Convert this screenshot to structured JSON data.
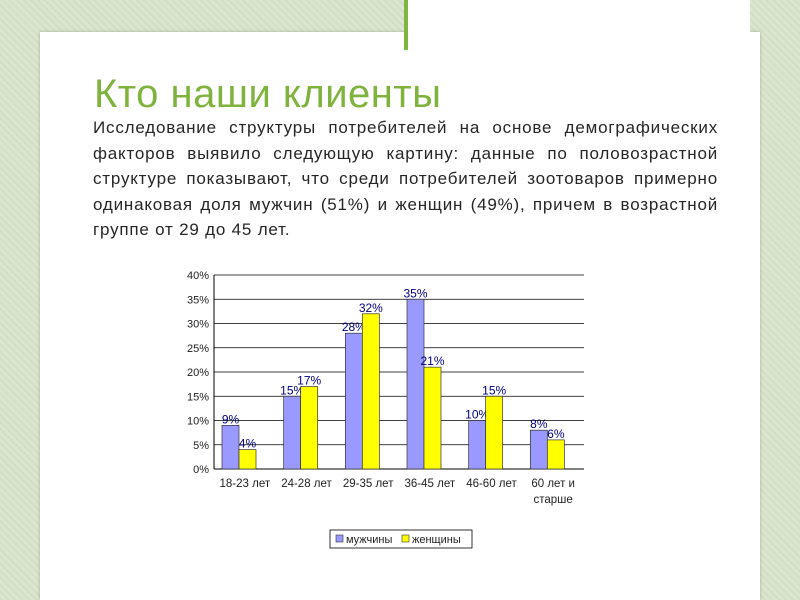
{
  "slide": {
    "title": "Кто наши клиенты",
    "text": "Исследование структуры потребителей на основе демографических факторов выявило следующую картину: данные по половозрастной структуре показывают, что среди потребителей зоотоваров примерно одинаковая доля мужчин (51%) и женщин (49%), причем в возрастной группе от 29 до 45 лет."
  },
  "colors": {
    "title": "#7fb33d",
    "background": "#d7e3c9",
    "accent_line": "#7fb73e",
    "men": "#9999ff",
    "women": "#ffff00",
    "data_label": "#000080"
  },
  "chart_data": {
    "type": "bar",
    "categories": [
      "18-23 лет",
      "24-28 лет",
      "29-35 лет",
      "36-45 лет",
      "46-60 лет",
      "60 лет и старше"
    ],
    "series": [
      {
        "name": "мужчины",
        "color": "#9999ff",
        "values": [
          9,
          15,
          28,
          35,
          10,
          8
        ]
      },
      {
        "name": "женщины",
        "color": "#ffff00",
        "values": [
          4,
          17,
          32,
          21,
          15,
          6
        ]
      }
    ],
    "data_labels": [
      [
        "9%",
        "15%",
        "28%",
        "35%",
        "10%",
        "8%"
      ],
      [
        "4%",
        "17%",
        "32%",
        "21%",
        "15%",
        "6%"
      ]
    ],
    "y_ticks": [
      "0%",
      "5%",
      "10%",
      "15%",
      "20%",
      "25%",
      "30%",
      "35%",
      "40%"
    ],
    "ylim": [
      0,
      40
    ],
    "grid": true,
    "legend_position": "bottom"
  }
}
